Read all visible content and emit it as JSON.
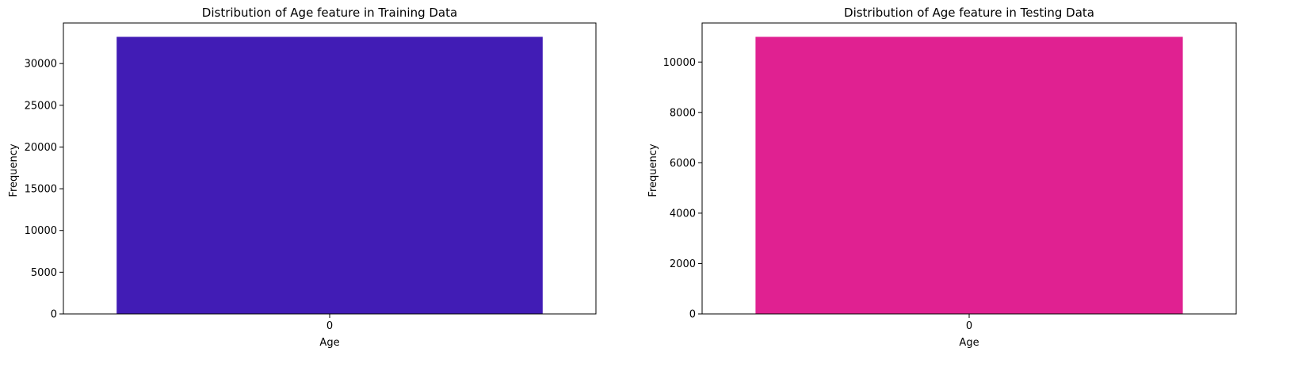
{
  "chart_data": [
    {
      "type": "bar",
      "title": "Distribution of Age feature in Training Data",
      "xlabel": "Age",
      "ylabel": "Frequency",
      "categories": [
        "0"
      ],
      "values": [
        33200
      ],
      "ylim": [
        0,
        34860
      ],
      "yticks": [
        0,
        5000,
        10000,
        15000,
        20000,
        25000,
        30000
      ],
      "grid": false,
      "color": "#411cb5"
    },
    {
      "type": "bar",
      "title": "Distribution of Age feature in Testing Data",
      "xlabel": "Age",
      "ylabel": "Frequency",
      "categories": [
        "0"
      ],
      "values": [
        11000
      ],
      "ylim": [
        0,
        11550
      ],
      "yticks": [
        0,
        2000,
        4000,
        6000,
        8000,
        10000
      ],
      "grid": false,
      "color": "#e02191"
    }
  ]
}
